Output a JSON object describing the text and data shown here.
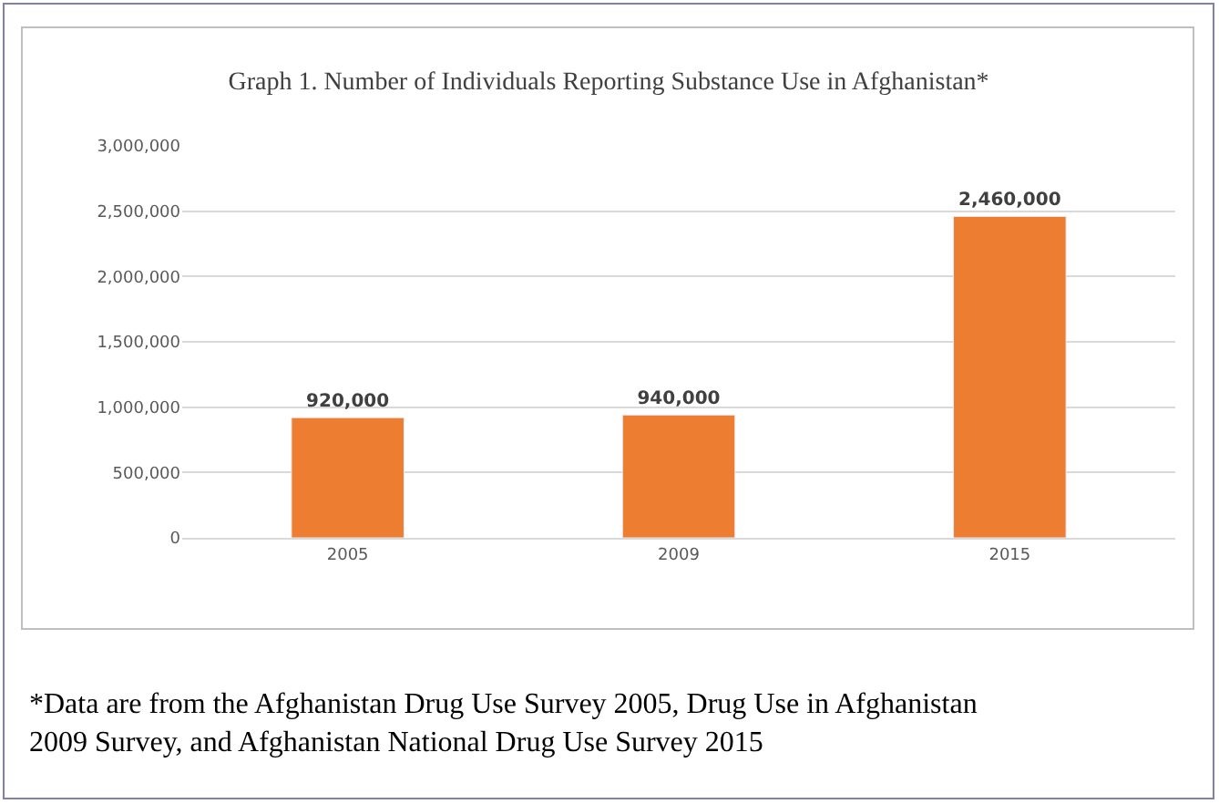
{
  "chart_data": {
    "type": "bar",
    "title": "Graph 1. Number of Individuals Reporting Substance Use in Afghanistan*",
    "categories": [
      "2005",
      "2009",
      "2015"
    ],
    "values": [
      920000,
      940000,
      2460000
    ],
    "color": "#ed7d31",
    "value_labels": [
      "920,000",
      "940,000",
      "2,460,000"
    ],
    "ylim": [
      0,
      3000000
    ],
    "yticks": [
      {
        "value": 0,
        "label": "0"
      },
      {
        "value": 500000,
        "label": "500,000"
      },
      {
        "value": 1000000,
        "label": "1,000,000"
      },
      {
        "value": 1500000,
        "label": "1,500,000"
      },
      {
        "value": 2000000,
        "label": "2,000,000"
      },
      {
        "value": 2500000,
        "label": "2,500,000"
      },
      {
        "value": 3000000,
        "label": "3,000,000"
      }
    ],
    "grid": "y",
    "annotations": [
      "*Data are from the Afghanistan Drug Use Survey 2005, Drug Use in Afghanistan 2009 Survey, and Afghanistan National Drug Use Survey 2015"
    ]
  }
}
